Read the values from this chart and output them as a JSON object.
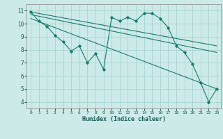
{
  "xlabel": "Humidex (Indice chaleur)",
  "bg_color": "#cceae8",
  "grid_color": "#aad4d0",
  "line_color": "#1a7a6a",
  "xlim": [
    -0.5,
    23.5
  ],
  "ylim": [
    3.5,
    11.5
  ],
  "xticks": [
    0,
    1,
    2,
    3,
    4,
    5,
    6,
    7,
    8,
    9,
    10,
    11,
    12,
    13,
    14,
    15,
    16,
    17,
    18,
    19,
    20,
    21,
    22,
    23
  ],
  "yticks": [
    4,
    5,
    6,
    7,
    8,
    9,
    10,
    11
  ],
  "main_line_x": [
    0,
    1,
    2,
    3,
    4,
    5,
    6,
    7,
    8,
    9,
    10,
    11,
    12,
    13,
    14,
    15,
    16,
    17,
    18,
    19,
    20,
    21,
    22,
    23
  ],
  "main_line_y": [
    10.9,
    10.2,
    9.8,
    9.1,
    8.6,
    7.9,
    8.3,
    7.0,
    7.7,
    6.5,
    10.5,
    10.2,
    10.5,
    10.2,
    10.8,
    10.8,
    10.4,
    9.7,
    8.3,
    7.8,
    6.9,
    5.5,
    4.0,
    5.0
  ],
  "trend1_x": [
    0,
    23
  ],
  "trend1_y": [
    10.9,
    8.3
  ],
  "trend2_x": [
    0,
    23
  ],
  "trend2_y": [
    10.7,
    7.8
  ],
  "trend3_x": [
    0,
    23
  ],
  "trend3_y": [
    10.4,
    5.0
  ]
}
